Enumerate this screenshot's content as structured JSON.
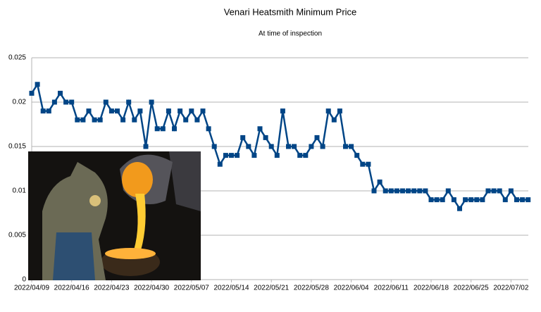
{
  "chart_data": {
    "type": "line",
    "title": "Venari Heatsmith Minimum Price",
    "subtitle": "At time of inspection",
    "categories": [
      "2022/04/09",
      null,
      null,
      null,
      null,
      null,
      null,
      "2022/04/16",
      null,
      null,
      null,
      null,
      null,
      null,
      "2022/04/23",
      null,
      null,
      null,
      null,
      null,
      null,
      "2022/04/30",
      null,
      null,
      null,
      null,
      null,
      null,
      "2022/05/07",
      null,
      null,
      null,
      null,
      null,
      null,
      "2022/05/14",
      null,
      null,
      null,
      null,
      null,
      null,
      "2022/05/21",
      null,
      null,
      null,
      null,
      null,
      null,
      "2022/05/28",
      null,
      null,
      null,
      null,
      null,
      null,
      "2022/06/04",
      null,
      null,
      null,
      null,
      null,
      null,
      "2022/06/11",
      null,
      null,
      null,
      null,
      null,
      null,
      "2022/06/18",
      null,
      null,
      null,
      null,
      null,
      null,
      "2022/06/25",
      null,
      null,
      null,
      null,
      null,
      null,
      "2022/07/02",
      null,
      null,
      null
    ],
    "series": [
      {
        "name": "Minimum Price",
        "color": "#004586",
        "values": [
          0.021,
          0.022,
          0.019,
          0.019,
          0.02,
          0.021,
          0.02,
          0.02,
          0.018,
          0.018,
          0.019,
          0.018,
          0.018,
          0.02,
          0.019,
          0.019,
          0.018,
          0.02,
          0.018,
          0.019,
          0.015,
          0.02,
          0.017,
          0.017,
          0.019,
          0.017,
          0.019,
          0.018,
          0.019,
          0.018,
          0.019,
          0.017,
          0.015,
          0.013,
          0.014,
          0.014,
          0.014,
          0.016,
          0.015,
          0.014,
          0.017,
          0.016,
          0.015,
          0.014,
          0.019,
          0.015,
          0.015,
          0.014,
          0.014,
          0.015,
          0.016,
          0.015,
          0.019,
          0.018,
          0.019,
          0.015,
          0.015,
          0.014,
          0.013,
          0.013,
          0.01,
          0.011,
          0.01,
          0.01,
          0.01,
          0.01,
          0.01,
          0.01,
          0.01,
          0.01,
          0.009,
          0.009,
          0.009,
          0.01,
          0.009,
          0.008,
          0.009,
          0.009,
          0.009,
          0.009,
          0.01,
          0.01,
          0.01,
          0.009,
          0.01,
          0.009,
          0.009,
          0.009
        ]
      }
    ],
    "ylim": [
      0,
      0.025
    ],
    "yticks": [
      0,
      0.005,
      0.01,
      0.015,
      0.02,
      0.025
    ],
    "grid": true
  }
}
